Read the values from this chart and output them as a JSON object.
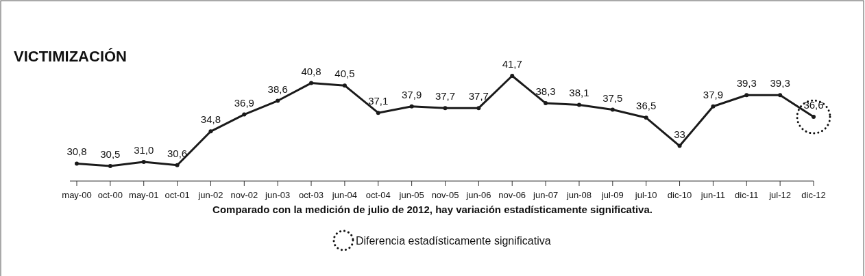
{
  "chart_data": {
    "type": "line",
    "title": "VICTIMIZACIÓN",
    "categories": [
      "may-00",
      "oct-00",
      "may-01",
      "oct-01",
      "jun-02",
      "nov-02",
      "jun-03",
      "oct-03",
      "jun-04",
      "oct-04",
      "jun-05",
      "nov-05",
      "jun-06",
      "nov-06",
      "jun-07",
      "jun-08",
      "jul-09",
      "jul-10",
      "dic-10",
      "jun-11",
      "dic-11",
      "jul-12",
      "dic-12"
    ],
    "series": [
      {
        "color": "#1a1a1a",
        "values": [
          30.8,
          30.5,
          31.0,
          30.6,
          34.8,
          36.9,
          38.6,
          40.8,
          40.5,
          37.1,
          37.9,
          37.7,
          37.7,
          41.7,
          38.3,
          38.1,
          37.5,
          36.5,
          33,
          37.9,
          39.3,
          39.3,
          36.6
        ],
        "value_labels": [
          "30,8",
          "30,5",
          "31,0",
          "30,6",
          "34,8",
          "36,9",
          "38,6",
          "40,8",
          "40,5",
          "37,1",
          "37,9",
          "37,7",
          "37,7",
          "41,7",
          "38,3",
          "38,1",
          "37,5",
          "36,5",
          "33",
          "37,9",
          "39,3",
          "39,3",
          "36,6"
        ]
      }
    ],
    "marker": "circle",
    "line_style": "solid",
    "annotations": [
      "Comparado con la medición de julio de 2012, hay variación estadísticamente significativa.",
      "Diferencia estadísticamente significativa"
    ]
  }
}
